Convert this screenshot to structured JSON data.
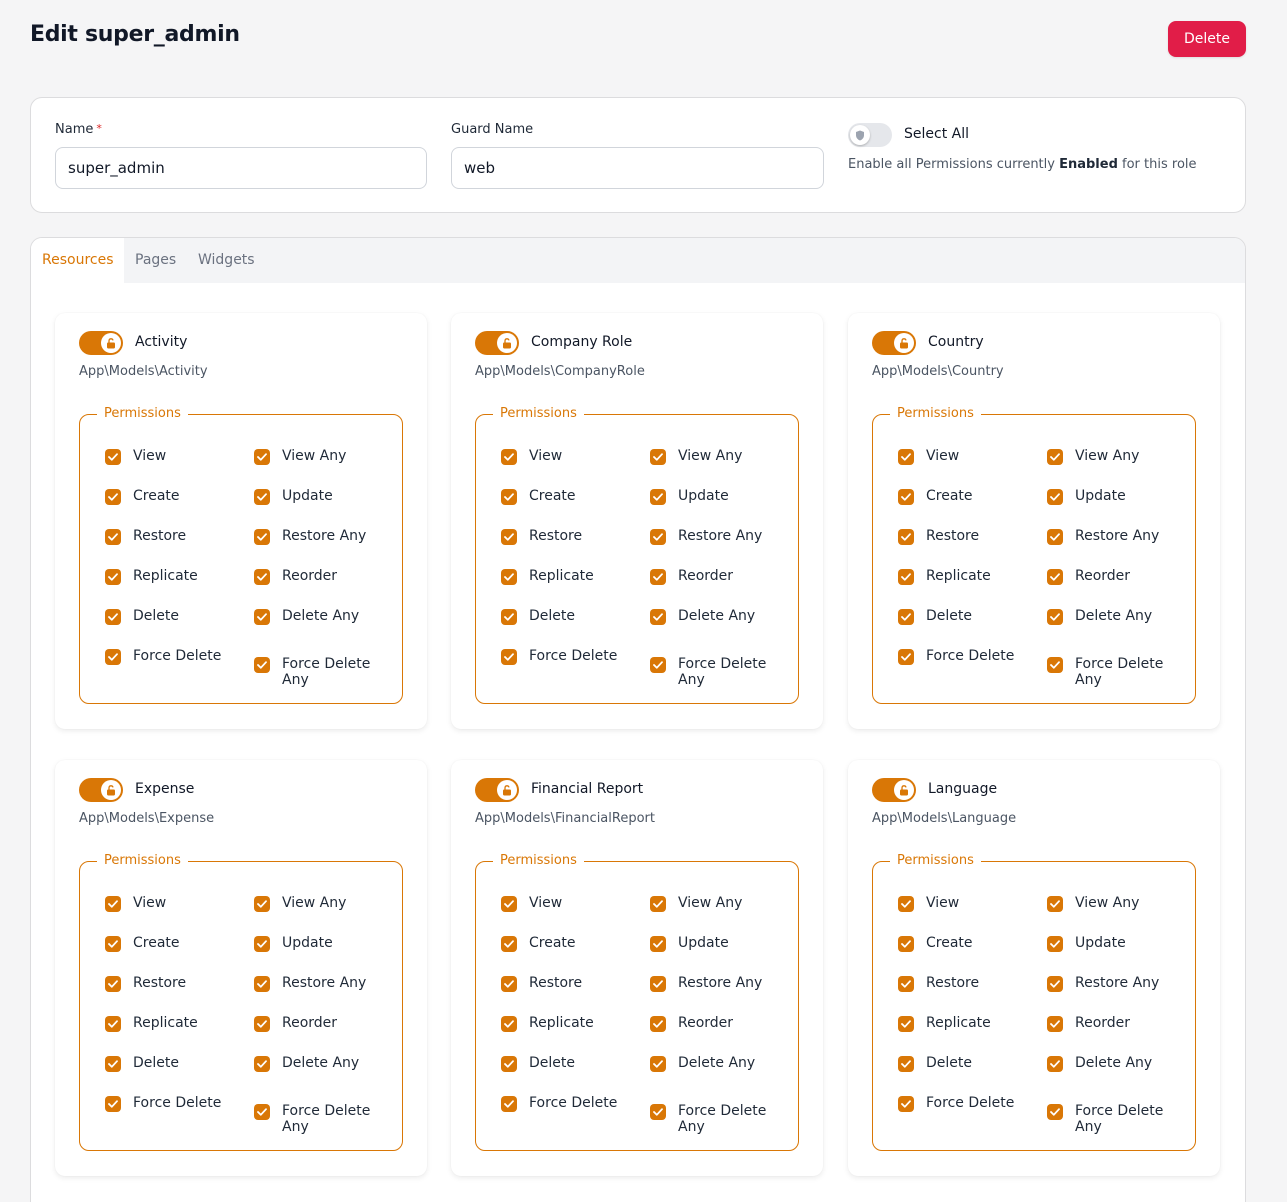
{
  "page": {
    "title": "Edit super_admin",
    "delete_label": "Delete"
  },
  "form": {
    "name_label": "Name",
    "required_marker": "*",
    "name_value": "super_admin",
    "guard_label": "Guard Name",
    "guard_value": "web",
    "select_all_label": "Select All",
    "select_all_hint_before": "Enable all Permissions currently ",
    "select_all_hint_bold": "Enabled",
    "select_all_hint_after": " for this role"
  },
  "tabs": [
    {
      "label": "Resources",
      "active": true
    },
    {
      "label": "Pages",
      "active": false
    },
    {
      "label": "Widgets",
      "active": false
    }
  ],
  "permissions_legend": "Permissions",
  "permission_labels": [
    "View",
    "View Any",
    "Create",
    "Update",
    "Restore",
    "Restore Any",
    "Replicate",
    "Reorder",
    "Delete",
    "Delete Any",
    "Force Delete",
    "Force Delete Any"
  ],
  "resources": [
    {
      "name": "Activity",
      "model": "App\\Models\\Activity"
    },
    {
      "name": "Company Role",
      "model": "App\\Models\\CompanyRole"
    },
    {
      "name": "Country",
      "model": "App\\Models\\Country"
    },
    {
      "name": "Expense",
      "model": "App\\Models\\Expense"
    },
    {
      "name": "Financial Report",
      "model": "App\\Models\\FinancialReport"
    },
    {
      "name": "Language",
      "model": "App\\Models\\Language"
    }
  ],
  "colors": {
    "accent": "#d97706",
    "danger": "#e11d48"
  }
}
